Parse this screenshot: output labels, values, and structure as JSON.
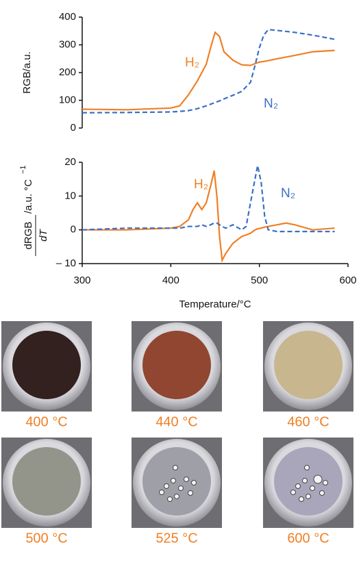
{
  "chart_data": [
    {
      "type": "line",
      "ylabel": "RGB/a.u.",
      "xlim": [
        300,
        600
      ],
      "ylim": [
        0,
        400
      ],
      "yticks": [
        0,
        100,
        200,
        300,
        400
      ],
      "x": [
        300,
        350,
        400,
        410,
        420,
        430,
        440,
        445,
        450,
        455,
        460,
        470,
        480,
        490,
        495,
        500,
        505,
        510,
        520,
        540,
        560,
        585
      ],
      "series": [
        {
          "name": "H₂",
          "color": "#f07f24",
          "style": "solid",
          "values": [
            68,
            66,
            72,
            80,
            120,
            170,
            230,
            290,
            345,
            330,
            275,
            245,
            228,
            226,
            232,
            238,
            240,
            243,
            250,
            262,
            275,
            280
          ]
        },
        {
          "name": "N₂",
          "color": "#3a6fc9",
          "style": "dashed",
          "values": [
            55,
            56,
            58,
            60,
            63,
            70,
            80,
            86,
            92,
            98,
            105,
            118,
            132,
            165,
            225,
            290,
            335,
            355,
            352,
            345,
            335,
            320
          ]
        }
      ]
    },
    {
      "type": "line",
      "ylabel_numerator": "dRGB",
      "ylabel_denominator": "dT",
      "ylabel_unit": "/a.u. °C",
      "ylabel_unit_exp": "−1",
      "xlabel": "Temperature/°C",
      "xlim": [
        300,
        600
      ],
      "xticks": [
        300,
        400,
        500,
        600
      ],
      "ylim": [
        -10,
        20
      ],
      "yticks": [
        {
          "value": -10,
          "label": "– 10"
        },
        0,
        10,
        20
      ],
      "x": [
        300,
        350,
        400,
        410,
        420,
        425,
        430,
        435,
        440,
        445,
        449,
        452,
        455,
        458,
        462,
        470,
        480,
        485,
        490,
        495,
        498,
        502,
        506,
        510,
        520,
        530,
        540,
        560,
        585
      ],
      "series": [
        {
          "name": "H₂",
          "color": "#f07f24",
          "style": "solid",
          "values": [
            0,
            0,
            0.5,
            1,
            3,
            6,
            8,
            6,
            8,
            13,
            17.5,
            10,
            -2,
            -9,
            -7,
            -4,
            -2,
            -1.5,
            -1,
            0,
            0.3,
            0.5,
            0.8,
            1,
            1.5,
            2,
            1.5,
            0,
            0.5
          ]
        },
        {
          "name": "N₂",
          "color": "#3a6fc9",
          "style": "dashed",
          "values": [
            0,
            0.5,
            0.5,
            0.5,
            1,
            1,
            1,
            1.5,
            1,
            1.5,
            2,
            2,
            1.5,
            1,
            0.5,
            1.5,
            0,
            1,
            8,
            15,
            19,
            14,
            4,
            0,
            -0.5,
            -0.5,
            -0.5,
            -0.5,
            -0.5
          ]
        }
      ]
    }
  ],
  "photos": {
    "captions": [
      "400 °C",
      "440 °C",
      "460 °C",
      "500 °C",
      "525 °C",
      "600 °C"
    ]
  }
}
